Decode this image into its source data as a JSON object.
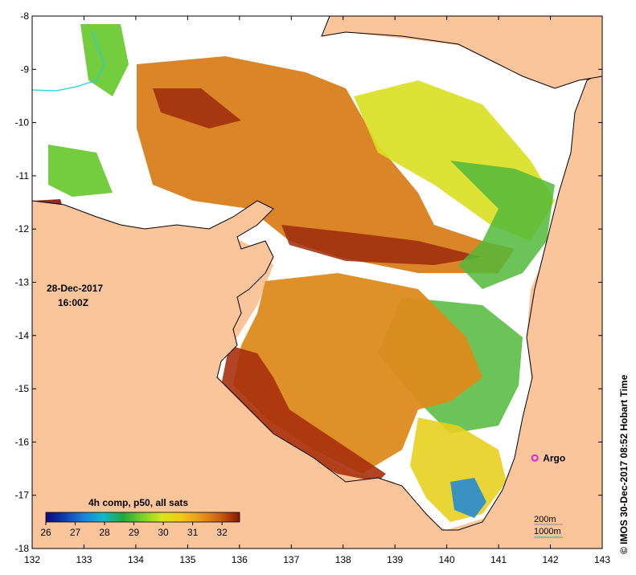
{
  "map": {
    "date_label": "28-Dec-2017",
    "time_label": "16:00Z",
    "credit": "© IMOS 30-Dec-2017 08:52 Hobart Time",
    "x_ticks": [
      "132",
      "133",
      "134",
      "135",
      "136",
      "137",
      "138",
      "139",
      "140",
      "141",
      "142",
      "143"
    ],
    "y_ticks": [
      "-8",
      "-9",
      "-10",
      "-11",
      "-12",
      "-13",
      "-14",
      "-15",
      "-16",
      "-17",
      "-18"
    ],
    "lon_range": [
      132,
      143
    ],
    "lat_range": [
      -18,
      -8
    ]
  },
  "legend": {
    "title": "4h comp, p50, all sats",
    "ticks": [
      "26",
      "27",
      "28",
      "29",
      "30",
      "31",
      "32"
    ],
    "range": [
      26,
      32.6
    ],
    "colors": [
      "#0a0a7a",
      "#0f3fb0",
      "#1a86d8",
      "#12b8c8",
      "#22a83a",
      "#7ad22a",
      "#d8e61c",
      "#f3c818",
      "#e8961a",
      "#c8600e",
      "#8a1606"
    ]
  },
  "marker": {
    "label": "Argo",
    "lon": 141.7,
    "lat": -16.3,
    "color": "#e020e0"
  },
  "bathymetry": {
    "line1": "200m",
    "line2": "1000m",
    "color1": "#999999",
    "color2": "#20c0d0"
  },
  "colors": {
    "land": "#fac59a",
    "cloud": "#ffffff",
    "coast": "#000000"
  }
}
